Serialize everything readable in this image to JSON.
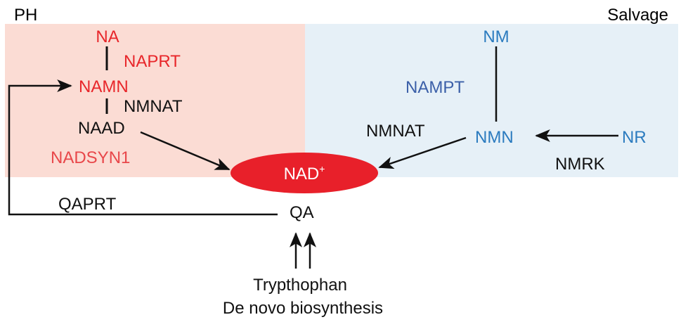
{
  "regions": {
    "left": {
      "label": "PH",
      "color": "#fbdcd4"
    },
    "right": {
      "label": "Salvage",
      "color": "#e6f0f7"
    }
  },
  "colors": {
    "red": "#e8262a",
    "light_red": "#e8474a",
    "blue": "#2b7bbf",
    "dark_blue": "#3b5fa8",
    "black": "#111111"
  },
  "nodes": {
    "na": "NA",
    "namn": "NAMN",
    "naad": "NAAD",
    "nad": "NAD",
    "nad_charge": "+",
    "qa": "QA",
    "nm": "NM",
    "nmn": "NMN",
    "nr": "NR",
    "tryptophan": "Trypthophan",
    "de_novo": "De novo biosynthesis"
  },
  "enzymes": {
    "naprt": "NAPRT",
    "nmnat_left": "NMNAT",
    "nadsyn1": "NADSYN1",
    "qaprt": "QAPRT",
    "nampt": "NAMPT",
    "nmnat_right": "NMNAT",
    "nmrk": "NMRK"
  }
}
